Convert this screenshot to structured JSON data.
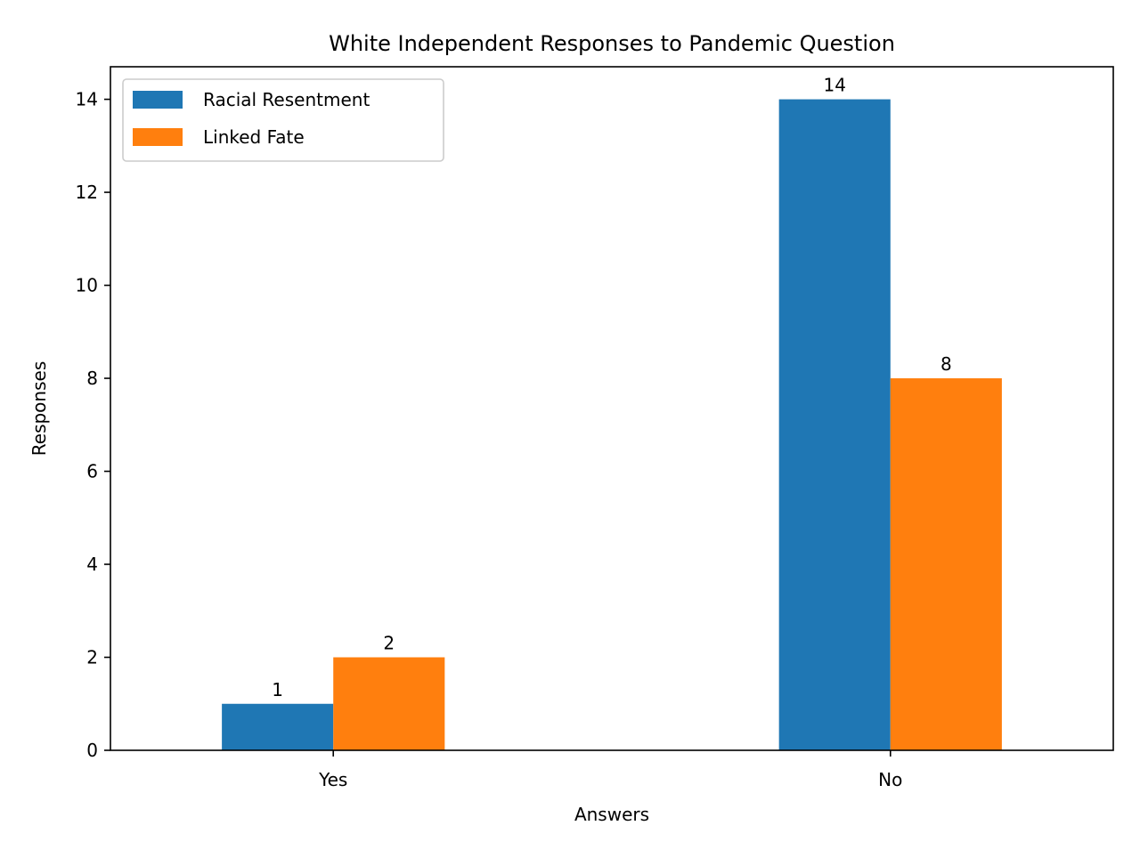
{
  "chart_data": {
    "type": "bar",
    "title": "White Independent Responses to Pandemic Question",
    "xlabel": "Answers",
    "ylabel": "Responses",
    "categories": [
      "Yes",
      "No"
    ],
    "series": [
      {
        "name": "Racial Resentment",
        "values": [
          1,
          14
        ],
        "color": "#1f77b4"
      },
      {
        "name": "Linked Fate",
        "values": [
          2,
          8
        ],
        "color": "#ff7f0e"
      }
    ],
    "ylim": [
      0,
      14.7
    ],
    "yticks": [
      0,
      2,
      4,
      6,
      8,
      10,
      12,
      14
    ],
    "grid": false,
    "legend_position": "top-left",
    "data_labels": true
  }
}
